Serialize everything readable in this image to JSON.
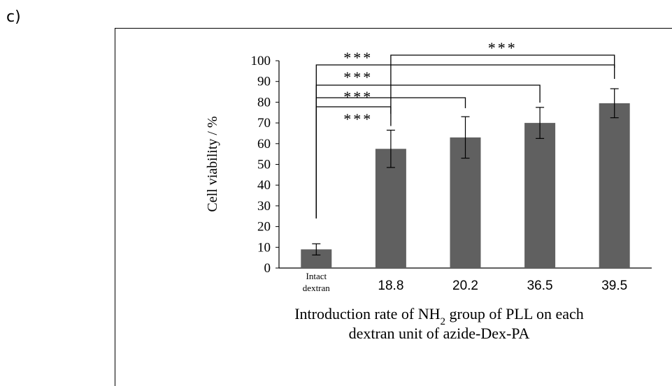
{
  "panel_label": "c)",
  "chart_data": {
    "type": "bar",
    "categories": [
      "Intact dextran",
      "18.8",
      "20.2",
      "36.5",
      "39.5"
    ],
    "values": [
      9,
      57.5,
      63,
      70,
      79.5
    ],
    "errors": [
      2.7,
      9,
      10,
      7.5,
      7
    ],
    "ylim": [
      0,
      100
    ],
    "yticks": [
      0,
      10,
      20,
      30,
      40,
      50,
      60,
      70,
      80,
      90,
      100
    ],
    "ylabel": "Cell viability / %",
    "xlabel_line1": "Introduction rate of NH2 group of PLL on each",
    "xlabel_line2": "dextran unit of azide-Dex-PA",
    "bar_color": "#606060",
    "significance": [
      {
        "from": 0,
        "to": 1,
        "label": "***"
      },
      {
        "from": 0,
        "to": 2,
        "label": "***"
      },
      {
        "from": 0,
        "to": 3,
        "label": "***"
      },
      {
        "from": 0,
        "to": 4,
        "label": "***"
      },
      {
        "from": 1,
        "to": 4,
        "label": "***"
      }
    ]
  }
}
